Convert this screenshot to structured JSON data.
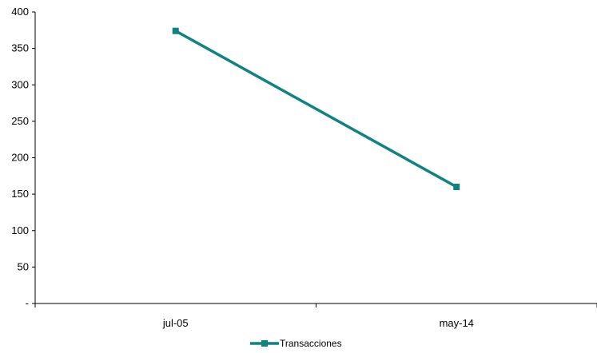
{
  "chart_data": {
    "type": "line",
    "categories": [
      "jul-05",
      "may-14"
    ],
    "series": [
      {
        "name": "Transacciones",
        "values": [
          374,
          160
        ],
        "color": "#0e837f",
        "marker": "square"
      }
    ],
    "ylim": [
      0,
      400
    ],
    "yticks": [
      0,
      50,
      100,
      150,
      200,
      250,
      300,
      350,
      400
    ],
    "ytick_labels": [
      "-",
      "50",
      "100",
      "150",
      "200",
      "250",
      "300",
      "350",
      "400"
    ],
    "grid": false,
    "legend": {
      "position": "bottom"
    },
    "title": "",
    "xlabel": "",
    "ylabel": ""
  }
}
